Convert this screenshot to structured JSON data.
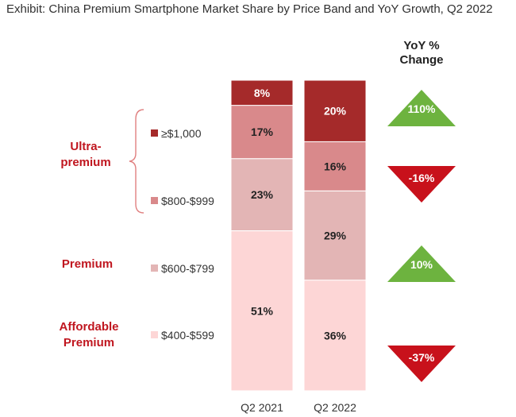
{
  "chart_data": {
    "type": "stacked-bar",
    "title": "Exhibit: China Premium Smartphone Market Share by Price Band and YoY Growth, Q2 2022",
    "categories": [
      "Q2 2021",
      "Q2 2022"
    ],
    "series": [
      {
        "name": "$400-$599",
        "values": [
          51,
          36
        ],
        "color": "#fdd6d6"
      },
      {
        "name": "$600-$799",
        "values": [
          23,
          29
        ],
        "color": "#e3b5b5"
      },
      {
        "name": "$800-$999",
        "values": [
          17,
          16
        ],
        "color": "#d9898b"
      },
      {
        "name": "≥$1,000",
        "values": [
          8,
          20
        ],
        "color": "#a52a2a"
      }
    ],
    "value_labels": [
      [
        "51%",
        "36%"
      ],
      [
        "23%",
        "29%"
      ],
      [
        "17%",
        "16%"
      ],
      [
        "8%",
        "20%"
      ]
    ],
    "legend_order": [
      "≥$1,000",
      "$800-$999",
      "$600-$799",
      "$400-$599"
    ],
    "groups": [
      {
        "label_lines": [
          "Ultra-",
          "premium"
        ],
        "members": [
          "≥$1,000",
          "$800-$999"
        ]
      },
      {
        "label_lines": [
          "Premium"
        ],
        "members": [
          "$600-$799"
        ]
      },
      {
        "label_lines": [
          "Affordable",
          "Premium"
        ],
        "members": [
          "$400-$599"
        ]
      }
    ],
    "yoy": {
      "header_lines": [
        "YoY %",
        "Change"
      ],
      "items": [
        {
          "band": "≥$1,000",
          "value": 110,
          "label": "110%",
          "direction": "up"
        },
        {
          "band": "$800-$999",
          "value": -16,
          "label": "-16%",
          "direction": "down"
        },
        {
          "band": "$600-$799",
          "value": 10,
          "label": "10%",
          "direction": "up"
        },
        {
          "band": "$400-$599",
          "value": -37,
          "label": "-37%",
          "direction": "down"
        }
      ],
      "up_color": "#6db33f",
      "down_color": "#c8111b"
    },
    "group_color": "#c0161f"
  }
}
